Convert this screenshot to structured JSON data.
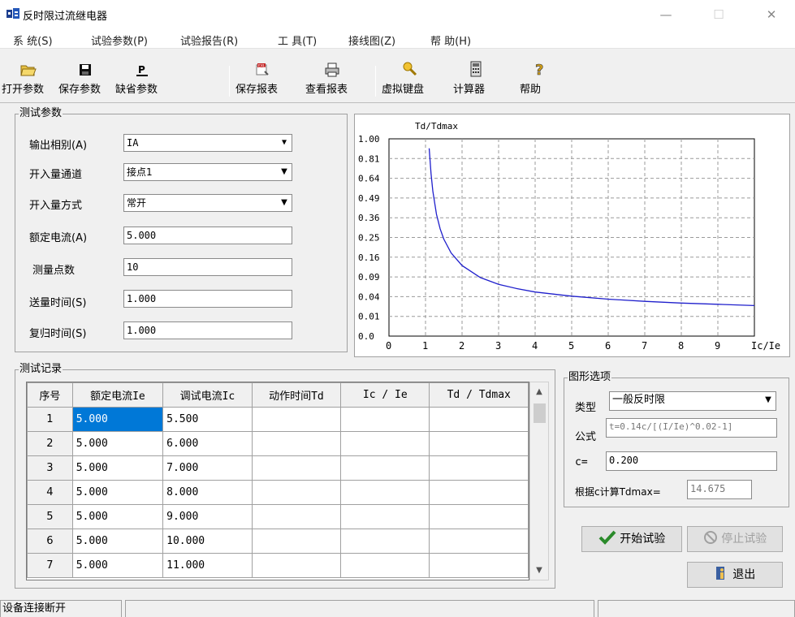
{
  "window": {
    "title": "反时限过流继电器",
    "minimize": "—",
    "maximize": "☐",
    "close": "✕"
  },
  "menu": [
    "系 统(S)",
    "试验参数(P)",
    "试验报告(R)",
    "工 具(T)",
    "接线图(Z)",
    "帮 助(H)"
  ],
  "toolbar": [
    {
      "label": "打开参数",
      "icon": "open-folder-icon"
    },
    {
      "label": "保存参数",
      "icon": "floppy-disk-icon"
    },
    {
      "label": "缺省参数",
      "icon": "default-params-icon"
    },
    {
      "label": "保存报表",
      "icon": "excel-report-icon"
    },
    {
      "label": "查看报表",
      "icon": "printer-icon"
    },
    {
      "label": "虚拟键盘",
      "icon": "keyboard-icon"
    },
    {
      "label": "计算器",
      "icon": "calculator-icon"
    },
    {
      "label": "帮助",
      "icon": "help-icon"
    }
  ],
  "params": {
    "title": "测试参数",
    "output_phase": {
      "label": "输出相别(A)",
      "value": "IA"
    },
    "input_channel": {
      "label": "开入量通道",
      "value": "接点1"
    },
    "input_mode": {
      "label": "开入量方式",
      "value": "常开"
    },
    "rated_current": {
      "label": "额定电流(A)",
      "value": "5.000"
    },
    "points": {
      "label": "测量点数",
      "value": "10"
    },
    "send_time": {
      "label": "送量时间(S)",
      "value": "1.000"
    },
    "reset_time": {
      "label": "复归时间(S)",
      "value": "1.000"
    }
  },
  "chart_data": {
    "type": "line",
    "ylabel": "Td/Tdmax",
    "xlabel": "Ic/Ie",
    "y_scale": "sqrt",
    "y_ticks": [
      "1.00",
      "0.81",
      "0.64",
      "0.49",
      "0.36",
      "0.25",
      "0.16",
      "0.09",
      "0.04",
      "0.01",
      "0.0"
    ],
    "y_tick_values": [
      1.0,
      0.81,
      0.64,
      0.49,
      0.36,
      0.25,
      0.16,
      0.09,
      0.04,
      0.01,
      0.0
    ],
    "x_ticks": [
      "0",
      "1",
      "2",
      "3",
      "4",
      "5",
      "6",
      "7",
      "8",
      "9"
    ],
    "xlim": [
      0,
      10
    ],
    "ylim": [
      0,
      1
    ],
    "grid": true,
    "series": [
      {
        "color": "#1f1fcc",
        "x": [
          1.1,
          1.15,
          1.2,
          1.3,
          1.4,
          1.5,
          1.7,
          2.0,
          2.5,
          3.0,
          3.5,
          4.0,
          5.0,
          6.0,
          7.0,
          8.0,
          9.0,
          10.0
        ],
        "y": [
          0.906,
          0.679,
          0.541,
          0.381,
          0.296,
          0.242,
          0.178,
          0.128,
          0.088,
          0.069,
          0.058,
          0.05,
          0.041,
          0.035,
          0.031,
          0.028,
          0.026,
          0.024
        ]
      }
    ]
  },
  "records": {
    "title": "测试记录",
    "columns": [
      "序号",
      "额定电流Ie",
      "调试电流Ic",
      "动作时间Td",
      "Ic / Ie",
      "Td / Tdmax"
    ],
    "rows": [
      [
        "1",
        "5.000",
        "5.500",
        "",
        "",
        ""
      ],
      [
        "2",
        "5.000",
        "6.000",
        "",
        "",
        ""
      ],
      [
        "3",
        "5.000",
        "7.000",
        "",
        "",
        ""
      ],
      [
        "4",
        "5.000",
        "8.000",
        "",
        "",
        ""
      ],
      [
        "5",
        "5.000",
        "9.000",
        "",
        "",
        ""
      ],
      [
        "6",
        "5.000",
        "10.000",
        "",
        "",
        ""
      ],
      [
        "7",
        "5.000",
        "11.000",
        "",
        "",
        ""
      ]
    ]
  },
  "graph_options": {
    "title": "图形选项",
    "type_label": "类型",
    "type_value": "一般反时限",
    "formula_label": "公式",
    "formula_value": "t=0.14c/[(I/Ie)^0.02-1]",
    "c_label": "c=",
    "c_value": "0.200",
    "tdmax_label": "根据c计算Tdmax=",
    "tdmax_value": "14.675"
  },
  "buttons": {
    "start": "开始试验",
    "stop": "停止试验",
    "exit": "退出"
  },
  "status": {
    "connection": "设备连接断开"
  },
  "colors": {
    "selection": "#0078d7",
    "curve": "#1f1fcc",
    "start_check": "#2a8a2a"
  }
}
